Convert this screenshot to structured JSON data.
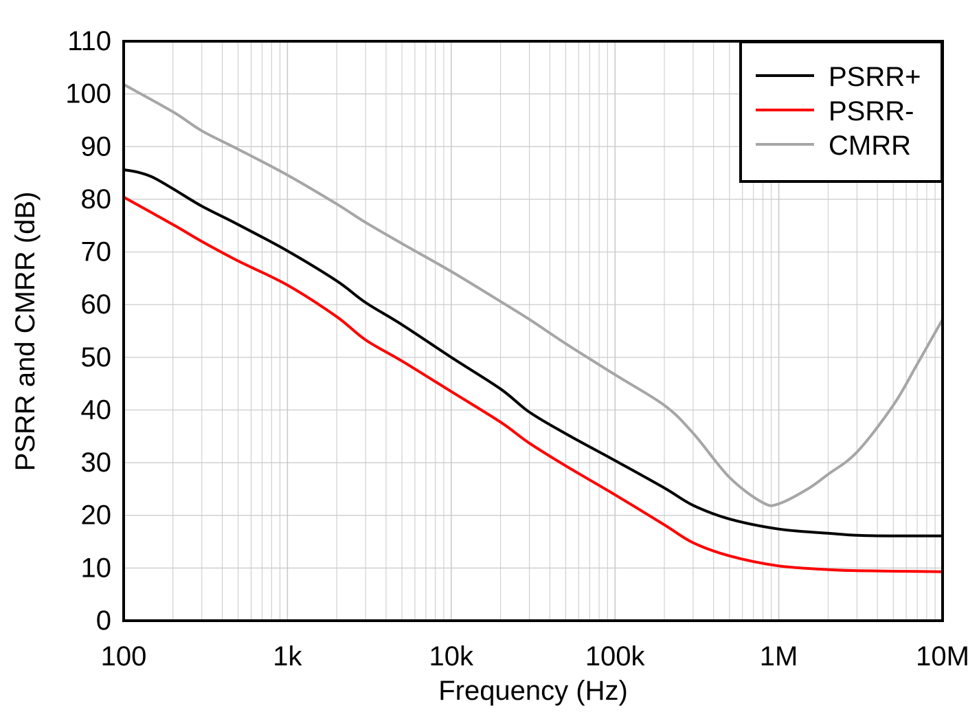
{
  "chart_data": {
    "type": "line",
    "title": "",
    "xlabel": "Frequency (Hz)",
    "ylabel": "PSRR and CMRR (dB)",
    "xscale": "log",
    "xlim": [
      100,
      10000000
    ],
    "ylim": [
      0,
      110
    ],
    "grid": true,
    "legend_position": "top-right",
    "x_tick_values": [
      100,
      1000,
      10000,
      100000,
      1000000,
      10000000
    ],
    "x_tick_labels": [
      "100",
      "1k",
      "10k",
      "100k",
      "1M",
      "10M"
    ],
    "y_ticks": [
      0,
      10,
      20,
      30,
      40,
      50,
      60,
      70,
      80,
      90,
      100,
      110
    ],
    "series": [
      {
        "name": "PSRR+",
        "color": "#000000",
        "x": [
          100,
          120,
          150,
          200,
          300,
          500,
          1000,
          2000,
          3000,
          5000,
          10000,
          20000,
          30000,
          50000,
          100000,
          200000,
          300000,
          500000,
          1000000,
          2000000,
          3000000,
          5000000,
          10000000
        ],
        "y": [
          85.6,
          85.2,
          84.2,
          82.0,
          78.7,
          75.2,
          70.2,
          64.5,
          60.4,
          56.2,
          50.0,
          44.0,
          39.6,
          35.5,
          30.4,
          25.2,
          21.9,
          19.3,
          17.4,
          16.6,
          16.2,
          16.1,
          16.1
        ]
      },
      {
        "name": "PSRR-",
        "color": "#ff0000",
        "x": [
          100,
          200,
          300,
          500,
          1000,
          2000,
          3000,
          5000,
          10000,
          20000,
          30000,
          50000,
          100000,
          200000,
          300000,
          500000,
          1000000,
          2000000,
          3000000,
          5000000,
          10000000
        ],
        "y": [
          80.4,
          75.2,
          72.0,
          68.3,
          63.7,
          57.7,
          53.3,
          49.3,
          43.5,
          37.7,
          33.7,
          29.4,
          23.9,
          18.2,
          14.8,
          12.3,
          10.4,
          9.7,
          9.5,
          9.4,
          9.3
        ]
      },
      {
        "name": "CMRR",
        "color": "#a6a6a6",
        "x": [
          100,
          200,
          300,
          500,
          1000,
          2000,
          3000,
          5000,
          10000,
          20000,
          30000,
          50000,
          100000,
          200000,
          300000,
          500000,
          800000,
          1000000,
          1500000,
          2000000,
          3000000,
          5000000,
          7000000,
          10000000
        ],
        "y": [
          101.8,
          96.6,
          93.0,
          89.5,
          84.6,
          79.1,
          75.6,
          71.6,
          66.3,
          60.6,
          57.2,
          52.6,
          46.7,
          40.9,
          35.6,
          27.2,
          22.4,
          22.2,
          25.0,
          27.8,
          32.0,
          40.9,
          48.7,
          57.2
        ]
      }
    ]
  }
}
